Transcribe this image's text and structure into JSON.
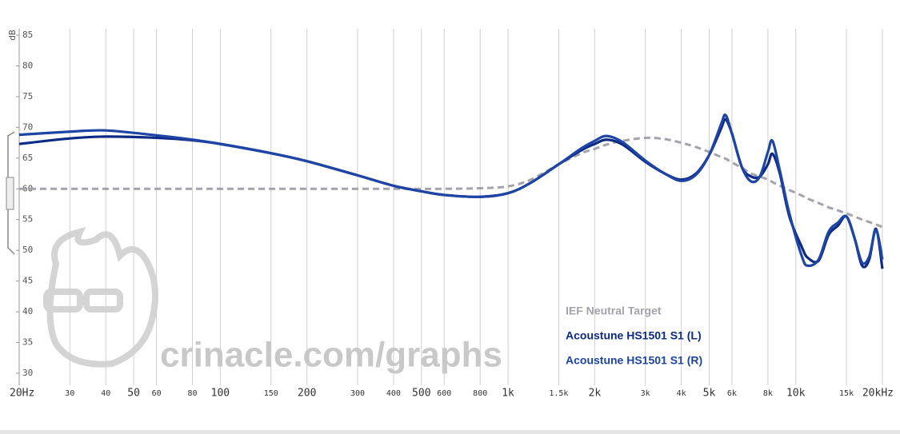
{
  "chart_data": {
    "type": "line",
    "ylabel": "dB",
    "watermark": "crinacle.com/graphs",
    "log_x": true,
    "grid": true,
    "legend": "lower right",
    "xlim": [
      20,
      20000
    ],
    "ylim": [
      30,
      85
    ],
    "xticks": [
      {
        "value": 20,
        "label": "20Hz"
      },
      30,
      40,
      50,
      60,
      80,
      100,
      150,
      200,
      300,
      400,
      500,
      600,
      800,
      {
        "value": 1000,
        "label": "1k"
      },
      {
        "value": 1500,
        "label": "1.5k"
      },
      {
        "value": 2000,
        "label": "2k"
      },
      {
        "value": 3000,
        "label": "3k"
      },
      {
        "value": 4000,
        "label": "4k"
      },
      {
        "value": 5000,
        "label": "5k"
      },
      {
        "value": 6000,
        "label": "6k"
      },
      {
        "value": 8000,
        "label": "8k"
      },
      {
        "value": 10000,
        "label": "10k"
      },
      {
        "value": 15000,
        "label": "15k"
      },
      {
        "value": 20000,
        "label": "20kHz"
      }
    ],
    "yticks": [
      30,
      35,
      40,
      45,
      50,
      55,
      60,
      65,
      70,
      75,
      80,
      85
    ],
    "x": [
      20,
      30,
      40,
      60,
      80,
      100,
      150,
      200,
      300,
      400,
      500,
      600,
      800,
      1000,
      1200,
      1500,
      1800,
      2000,
      2200,
      2500,
      3000,
      3500,
      4000,
      4500,
      5000,
      5500,
      5700,
      6000,
      6500,
      7000,
      7500,
      8000,
      8300,
      8800,
      9500,
      10500,
      11000,
      12000,
      13000,
      14000,
      15000,
      16000,
      17000,
      18000,
      19000,
      20000
    ],
    "series": [
      {
        "name": "IEF Neutral Target",
        "color": "#a3a3ad",
        "dashed": true,
        "values": [
          60,
          60,
          60,
          60,
          60,
          60,
          60,
          60,
          60,
          60,
          60,
          60,
          60.1,
          60.4,
          61.5,
          64,
          65.8,
          66.5,
          67.2,
          67.8,
          68.3,
          68.1,
          67.5,
          66.8,
          66,
          65.2,
          64.9,
          64.3,
          63.4,
          62.5,
          62,
          61.5,
          61.1,
          60.5,
          59.8,
          58.9,
          58.4,
          57.7,
          57,
          56.5,
          56,
          55.5,
          55,
          54.6,
          54.2,
          53.8
        ]
      },
      {
        "name": "Acoustune HS1501 S1 (L)",
        "color": "#0d2a86",
        "values": [
          67.3,
          68.2,
          68.5,
          68.3,
          67.9,
          67.3,
          65.8,
          64.5,
          62.2,
          60.5,
          59.6,
          59,
          58.7,
          59.3,
          61,
          64,
          66.3,
          67.3,
          68,
          67.2,
          64.4,
          62.5,
          61.5,
          62.5,
          65.5,
          69.8,
          71.3,
          69,
          63.5,
          62,
          62,
          64,
          65.7,
          62.5,
          55.5,
          50.5,
          48.8,
          48.3,
          52.5,
          54,
          55.5,
          52,
          47.5,
          48.5,
          53.5,
          47
        ]
      },
      {
        "name": "Acoustune HS1501 S1 (R)",
        "color": "#1e44a6",
        "values": [
          68.8,
          69.3,
          69.5,
          68.7,
          68,
          67.3,
          65.8,
          64.5,
          62.2,
          60.5,
          59.6,
          59,
          58.7,
          59.3,
          61,
          64,
          66.6,
          67.8,
          68.6,
          67.6,
          64.6,
          62.5,
          61.3,
          62.3,
          65.5,
          70.5,
          72,
          69,
          63.5,
          61.2,
          62,
          66,
          67.8,
          63,
          56,
          49,
          47.5,
          48.5,
          53,
          54.5,
          55.5,
          52,
          48,
          49,
          53.3,
          48.5
        ]
      }
    ]
  }
}
